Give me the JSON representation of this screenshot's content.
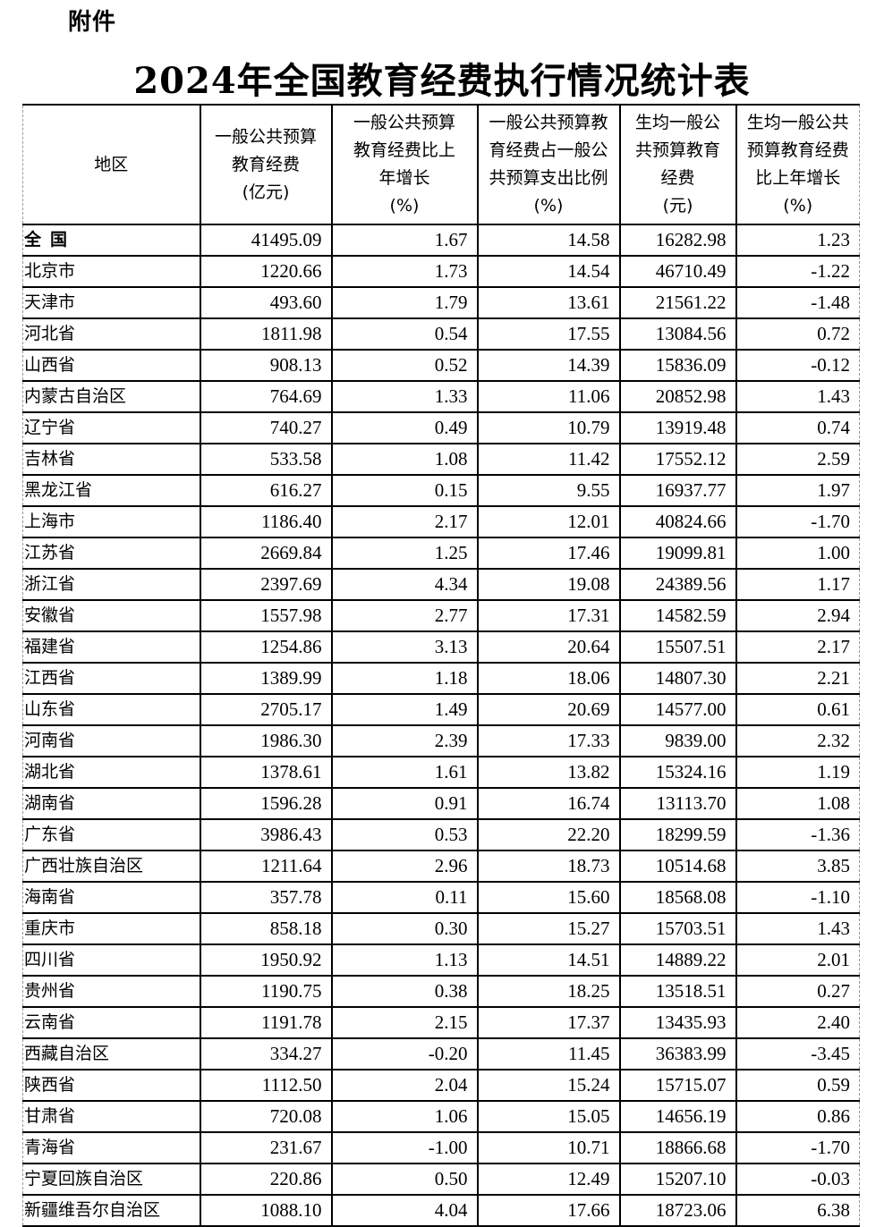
{
  "attachment_label": "附件",
  "title": "2024年全国教育经费执行情况统计表",
  "table": {
    "headers": [
      [
        "地区"
      ],
      [
        "一般公共预算",
        "教育经费",
        "(亿元)"
      ],
      [
        "一般公共预算",
        "教育经费比上",
        "年增长",
        "(%)"
      ],
      [
        "一般公共预算教",
        "育经费占一般公",
        "共预算支出比例",
        "(%)"
      ],
      [
        "生均一般公",
        "共预算教育",
        "经费",
        "(元)"
      ],
      [
        "生均一般公共",
        "预算教育经费",
        "比上年增长",
        "(%)"
      ]
    ],
    "rows": [
      [
        "全国",
        "41495.09",
        "1.67",
        "14.58",
        "16282.98",
        "1.23"
      ],
      [
        "北京市",
        "1220.66",
        "1.73",
        "14.54",
        "46710.49",
        "-1.22"
      ],
      [
        "天津市",
        "493.60",
        "1.79",
        "13.61",
        "21561.22",
        "-1.48"
      ],
      [
        "河北省",
        "1811.98",
        "0.54",
        "17.55",
        "13084.56",
        "0.72"
      ],
      [
        "山西省",
        "908.13",
        "0.52",
        "14.39",
        "15836.09",
        "-0.12"
      ],
      [
        "内蒙古自治区",
        "764.69",
        "1.33",
        "11.06",
        "20852.98",
        "1.43"
      ],
      [
        "辽宁省",
        "740.27",
        "0.49",
        "10.79",
        "13919.48",
        "0.74"
      ],
      [
        "吉林省",
        "533.58",
        "1.08",
        "11.42",
        "17552.12",
        "2.59"
      ],
      [
        "黑龙江省",
        "616.27",
        "0.15",
        "9.55",
        "16937.77",
        "1.97"
      ],
      [
        "上海市",
        "1186.40",
        "2.17",
        "12.01",
        "40824.66",
        "-1.70"
      ],
      [
        "江苏省",
        "2669.84",
        "1.25",
        "17.46",
        "19099.81",
        "1.00"
      ],
      [
        "浙江省",
        "2397.69",
        "4.34",
        "19.08",
        "24389.56",
        "1.17"
      ],
      [
        "安徽省",
        "1557.98",
        "2.77",
        "17.31",
        "14582.59",
        "2.94"
      ],
      [
        "福建省",
        "1254.86",
        "3.13",
        "20.64",
        "15507.51",
        "2.17"
      ],
      [
        "江西省",
        "1389.99",
        "1.18",
        "18.06",
        "14807.30",
        "2.21"
      ],
      [
        "山东省",
        "2705.17",
        "1.49",
        "20.69",
        "14577.00",
        "0.61"
      ],
      [
        "河南省",
        "1986.30",
        "2.39",
        "17.33",
        "9839.00",
        "2.32"
      ],
      [
        "湖北省",
        "1378.61",
        "1.61",
        "13.82",
        "15324.16",
        "1.19"
      ],
      [
        "湖南省",
        "1596.28",
        "0.91",
        "16.74",
        "13113.70",
        "1.08"
      ],
      [
        "广东省",
        "3986.43",
        "0.53",
        "22.20",
        "18299.59",
        "-1.36"
      ],
      [
        "广西壮族自治区",
        "1211.64",
        "2.96",
        "18.73",
        "10514.68",
        "3.85"
      ],
      [
        "海南省",
        "357.78",
        "0.11",
        "15.60",
        "18568.08",
        "-1.10"
      ],
      [
        "重庆市",
        "858.18",
        "0.30",
        "15.27",
        "15703.51",
        "1.43"
      ],
      [
        "四川省",
        "1950.92",
        "1.13",
        "14.51",
        "14889.22",
        "2.01"
      ],
      [
        "贵州省",
        "1190.75",
        "0.38",
        "18.25",
        "13518.51",
        "0.27"
      ],
      [
        "云南省",
        "1191.78",
        "2.15",
        "17.37",
        "13435.93",
        "2.40"
      ],
      [
        "西藏自治区",
        "334.27",
        "-0.20",
        "11.45",
        "36383.99",
        "-3.45"
      ],
      [
        "陕西省",
        "1112.50",
        "2.04",
        "15.24",
        "15715.07",
        "0.59"
      ],
      [
        "甘肃省",
        "720.08",
        "1.06",
        "15.05",
        "14656.19",
        "0.86"
      ],
      [
        "青海省",
        "231.67",
        "-1.00",
        "10.71",
        "18866.68",
        "-1.70"
      ],
      [
        "宁夏回族自治区",
        "220.86",
        "0.50",
        "12.49",
        "15207.10",
        "-0.03"
      ],
      [
        "新疆维吾尔自治区",
        "1088.10",
        "4.04",
        "17.66",
        "18723.06",
        "6.38"
      ]
    ]
  }
}
